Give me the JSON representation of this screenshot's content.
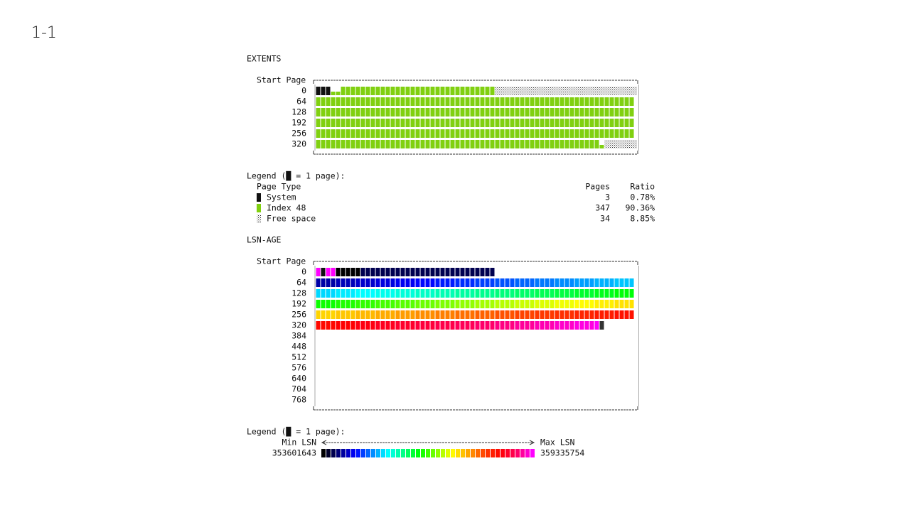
{
  "page_title": "1-1",
  "extents": {
    "heading": "EXTENTS",
    "axis_label": "Start Page",
    "rows": [
      0,
      64,
      128,
      192,
      256,
      320
    ],
    "legend": {
      "title": "Legend (█ = 1 page):",
      "columns": [
        "Page Type",
        "Pages",
        "Ratio"
      ],
      "items": [
        {
          "name": "System",
          "pages": 3,
          "ratio": "0.78%"
        },
        {
          "name": "Index 48",
          "pages": 347,
          "ratio": "90.36%"
        },
        {
          "name": "Free space",
          "pages": 34,
          "ratio": "8.85%"
        }
      ]
    }
  },
  "lsn_age": {
    "heading": "LSN-AGE",
    "axis_label": "Start Page",
    "rows": [
      0,
      64,
      128,
      192,
      256,
      320,
      384,
      448,
      512,
      576,
      640,
      704,
      768
    ],
    "legend": {
      "title": "Legend (█ = 1 page):",
      "min_label": "Min LSN",
      "max_label": "Max LSN",
      "min_value": "353601643",
      "max_value": "359335754"
    }
  }
}
